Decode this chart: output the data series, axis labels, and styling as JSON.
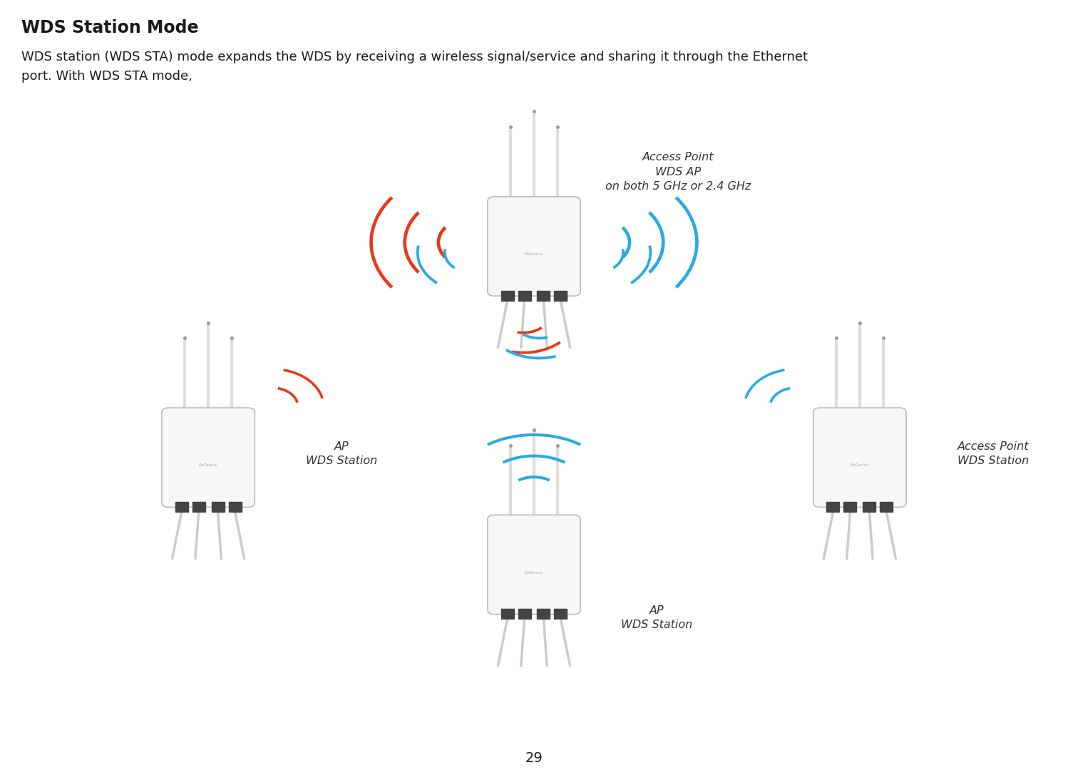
{
  "title": "WDS Station Mode",
  "body_text": "WDS station (WDS STA) mode expands the WDS by receiving a wireless signal/service and sharing it through the Ethernet\nport. With WDS STA mode,",
  "page_number": "29",
  "red_color": "#E8391A",
  "blue_color": "#29ABE2",
  "white_color": "#FFFFFF",
  "light_gray": "#E8E8E8",
  "gray": "#CCCCCC",
  "dark_gray": "#888888",
  "text_color": "#1a1a1a",
  "label_color": "#333333",
  "background_color": "#FFFFFF",
  "ap_label": "Access Point\nWDS AP\non both 5 GHz or 2.4 GHz",
  "sta_left_label": "AP\nWDS Station",
  "sta_bottom_label": "AP\nWDS Station",
  "sta_right_label": "Access Point\nWDS Station"
}
